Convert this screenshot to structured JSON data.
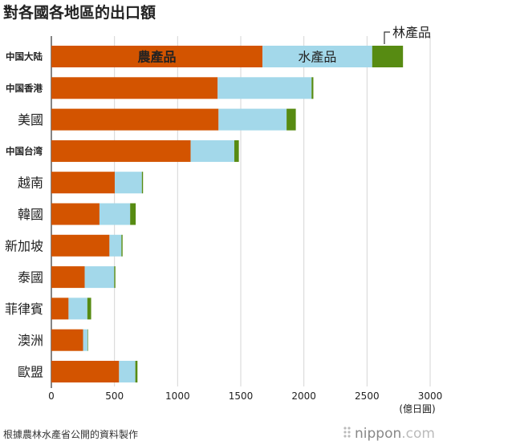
{
  "chart_data": {
    "type": "bar",
    "orientation": "horizontal",
    "stacked": true,
    "title": "對各國各地區的出口額",
    "categories": [
      "中国大陆",
      "中国香港",
      "美國",
      "中国台湾",
      "越南",
      "韓國",
      "新加坡",
      "泰國",
      "菲律賓",
      "澳洲",
      "歐盟"
    ],
    "small_label_categories": [
      "中国大陆",
      "中国香港",
      "中国台湾"
    ],
    "series": [
      {
        "name": "農產品",
        "color": "#d35400",
        "values": [
          1672,
          1317,
          1324,
          1103,
          502,
          381,
          460,
          264,
          136,
          251,
          536
        ]
      },
      {
        "name": "水產品",
        "color": "#a3d8ea",
        "values": [
          869,
          744,
          539,
          346,
          215,
          243,
          95,
          234,
          149,
          36,
          129
        ]
      },
      {
        "name": "林產品",
        "color": "#578b12",
        "values": [
          244,
          14,
          73,
          36,
          9,
          44,
          9,
          9,
          30,
          4,
          17
        ]
      }
    ],
    "xlim": [
      0,
      3000
    ],
    "xticks": [
      0,
      500,
      1000,
      1500,
      2000,
      2500,
      3000
    ],
    "xunit": "(億日圓)",
    "grid": true,
    "legend": "inline-on-first-bar"
  },
  "footer": {
    "source": "根據農林水產省公開的資料製作",
    "logo_text_main": "nippon",
    "logo_text_suffix": ".com"
  }
}
